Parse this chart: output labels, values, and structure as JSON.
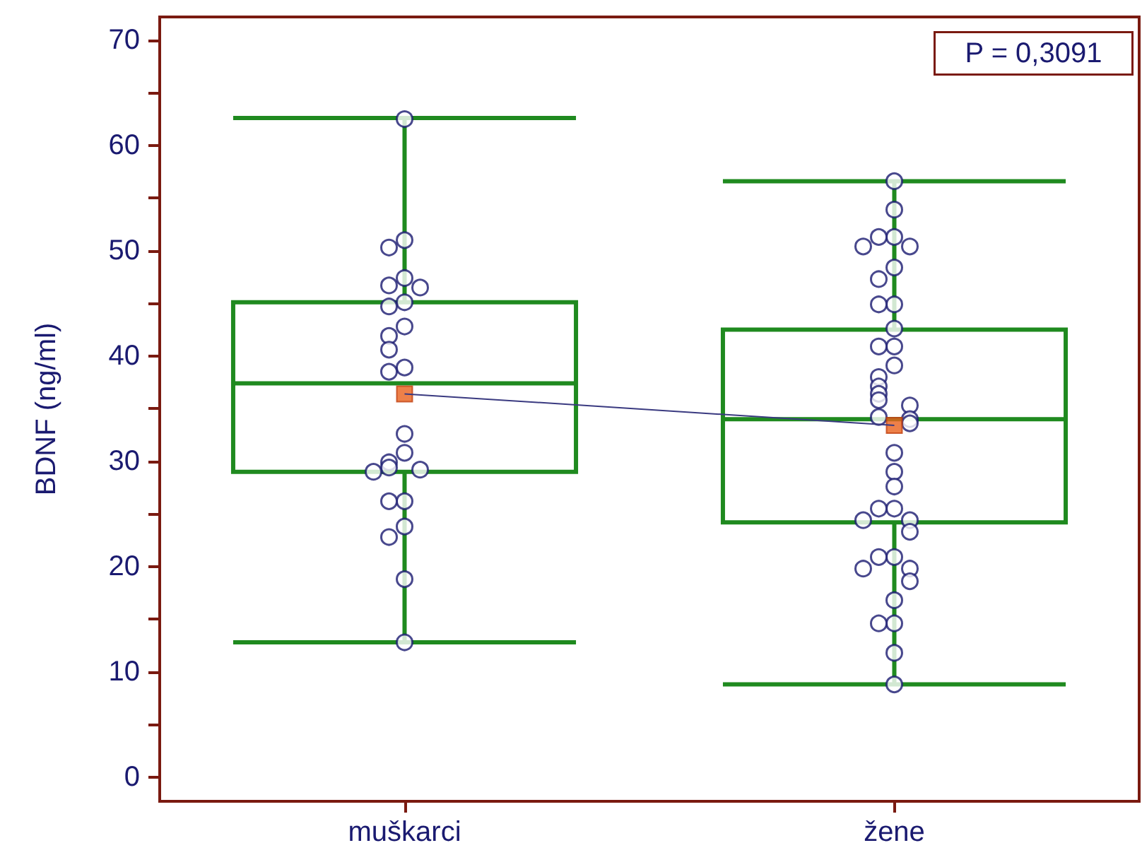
{
  "chart_data": {
    "type": "box",
    "ylabel": "BDNF (ng/ml)",
    "categories": [
      "muškarci",
      "žene"
    ],
    "ylim": [
      -2.3,
      72.2
    ],
    "yticks": [
      0,
      {
        "value": 5,
        "label": null
      },
      10,
      {
        "value": 15,
        "label": null
      },
      20,
      {
        "value": 25,
        "label": null
      },
      30,
      {
        "value": 35,
        "label": null
      },
      40,
      {
        "value": 45,
        "label": null
      },
      50,
      {
        "value": 55,
        "label": null
      },
      60,
      {
        "value": 65,
        "label": null
      },
      70
    ],
    "grid": false,
    "annotations": [
      "P = 0,3091"
    ],
    "series": [
      {
        "type": "line",
        "color": "#3a3a80",
        "values": [
          36.4,
          33.4
        ]
      },
      {
        "color": "#1f8a1f",
        "boxes": [
          {
            "low": 12.8,
            "q1": 29,
            "median": 37.4,
            "q3": 45.1,
            "high": 62.6,
            "mean": 36.4
          },
          {
            "low": 8.8,
            "q1": 24.2,
            "median": 34,
            "q3": 42.5,
            "high": 56.6,
            "mean": 33.4
          }
        ]
      },
      {
        "type": "scatter",
        "color": "#1a1a70",
        "x": [
          "muškarci",
          "muškarci",
          "muškarci",
          "muškarci",
          "muškarci",
          "muškarci",
          "muškarci",
          "muškarci",
          "muškarci",
          "muškarci",
          "muškarci",
          "muškarci",
          "muškarci",
          "muškarci",
          "muškarci",
          "muškarci",
          "muškarci",
          "muškarci",
          "muškarci",
          "muškarci",
          "muškarci",
          "muškarci",
          "muškarci",
          "muškarci",
          "muškarci",
          "žene",
          "žene",
          "žene",
          "žene",
          "žene",
          "žene",
          "žene",
          "žene",
          "žene",
          "žene",
          "žene",
          "žene",
          "žene",
          "žene",
          "žene",
          "žene",
          "žene",
          "žene",
          "žene",
          "žene",
          "žene",
          "žene",
          "žene",
          "žene",
          "žene",
          "žene",
          "žene",
          "žene",
          "žene",
          "žene",
          "žene",
          "žene",
          "žene",
          "žene",
          "žene",
          "žene",
          "žene",
          "žene",
          "žene",
          "žene"
        ],
        "values": [
          62.5,
          51,
          50.3,
          47.4,
          46.7,
          46.5,
          45.1,
          44.7,
          42.8,
          41.9,
          40.6,
          38.9,
          38.5,
          32.6,
          30.8,
          29.9,
          29.4,
          29.2,
          29,
          26.2,
          26.2,
          23.8,
          22.8,
          18.8,
          12.8,
          56.6,
          53.9,
          51.3,
          51.3,
          50.4,
          50.4,
          48.4,
          47.3,
          44.9,
          44.9,
          42.6,
          40.9,
          40.9,
          39.1,
          38,
          37.1,
          36.4,
          35.8,
          35.3,
          34.2,
          34,
          33.6,
          30.8,
          29,
          27.6,
          25.5,
          25.5,
          24.4,
          24.4,
          23.3,
          20.9,
          20.9,
          19.8,
          19.8,
          18.6,
          16.8,
          14.6,
          14.6,
          11.8,
          8.8
        ]
      }
    ]
  }
}
